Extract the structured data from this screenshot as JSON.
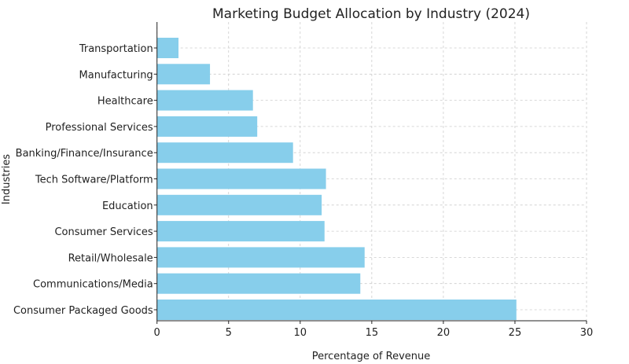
{
  "chart_data": {
    "type": "bar",
    "orientation": "horizontal",
    "title": "Marketing Budget Allocation by Industry (2024)",
    "xlabel": "Percentage of Revenue",
    "ylabel": "Industries",
    "xlim": [
      0,
      30
    ],
    "xticks": [
      0,
      5,
      10,
      15,
      20,
      25,
      30
    ],
    "grid": true,
    "bar_color": "#87ceeb",
    "categories": [
      "Consumer Packaged Goods",
      "Communications/Media",
      "Retail/Wholesale",
      "Consumer Services",
      "Education",
      "Tech Software/Platform",
      "Banking/Finance/Insurance",
      "Professional Services",
      "Healthcare",
      "Manufacturing",
      "Transportation"
    ],
    "values": [
      25.1,
      14.2,
      14.5,
      11.7,
      11.5,
      11.8,
      9.5,
      7.0,
      6.7,
      3.7,
      1.5
    ]
  }
}
